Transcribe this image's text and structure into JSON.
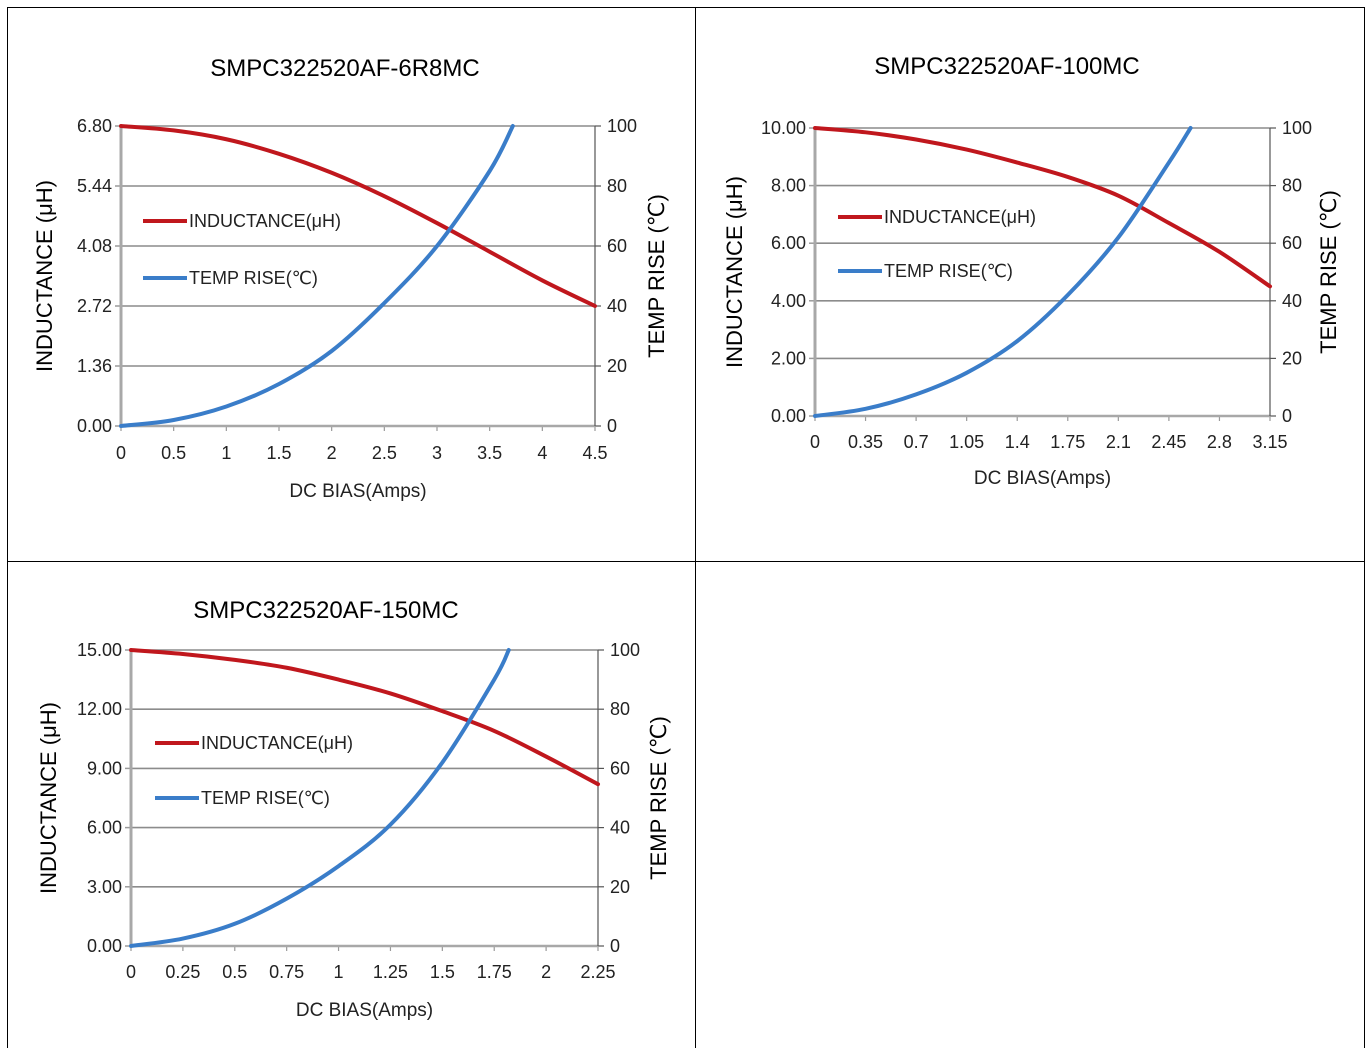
{
  "chart_data": [
    {
      "type": "line",
      "title": "SMPC322520AF-6R8MC",
      "xlabel": "DC BIAS(Amps)",
      "ylabel": "INDUCTANCE (μH)",
      "y2label": "TEMP RISE (℃)",
      "xlim": [
        0,
        4.5
      ],
      "ylim": [
        0,
        6.8
      ],
      "y2lim": [
        0,
        100
      ],
      "x_ticks": [
        "0",
        "0.5",
        "1",
        "1.5",
        "2",
        "2.5",
        "3",
        "3.5",
        "4",
        "4.5"
      ],
      "y_ticks": [
        "0.00",
        "1.36",
        "2.72",
        "4.08",
        "5.44",
        "6.80"
      ],
      "y2_ticks": [
        "0",
        "20",
        "40",
        "60",
        "80",
        "100"
      ],
      "grid": true,
      "legend_position": "left-center",
      "series": [
        {
          "name": "INDUCTANCE(μH)",
          "axis": "left",
          "color": "#c0171d",
          "x": [
            0,
            0.5,
            1,
            1.5,
            2,
            2.5,
            3,
            3.5,
            4,
            4.5
          ],
          "values": [
            6.8,
            6.7,
            6.5,
            6.17,
            5.74,
            5.21,
            4.6,
            3.95,
            3.3,
            2.72
          ]
        },
        {
          "name": "TEMP RISE(℃)",
          "axis": "right",
          "color": "#3a7dc9",
          "x": [
            0,
            0.5,
            1,
            1.5,
            2,
            2.5,
            3,
            3.5,
            3.72
          ],
          "values": [
            0,
            2,
            6.5,
            14,
            25,
            41,
            60,
            85,
            100
          ]
        }
      ]
    },
    {
      "type": "line",
      "title": "SMPC322520AF-100MC",
      "xlabel": "DC BIAS(Amps)",
      "ylabel": "INDUCTANCE (μH)",
      "y2label": "TEMP RISE (℃)",
      "xlim": [
        0,
        3.15
      ],
      "ylim": [
        0,
        10
      ],
      "y2lim": [
        0,
        100
      ],
      "x_ticks": [
        "0",
        "0.35",
        "0.7",
        "1.05",
        "1.4",
        "1.75",
        "2.1",
        "2.45",
        "2.8",
        "3.15"
      ],
      "y_ticks": [
        "0.00",
        "2.00",
        "4.00",
        "6.00",
        "8.00",
        "10.00"
      ],
      "y2_ticks": [
        "0",
        "20",
        "40",
        "60",
        "80",
        "100"
      ],
      "grid": true,
      "legend_position": "left-center",
      "series": [
        {
          "name": "INDUCTANCE(μH)",
          "axis": "left",
          "color": "#c0171d",
          "x": [
            0,
            0.35,
            0.7,
            1.05,
            1.4,
            1.75,
            2.1,
            2.45,
            2.8,
            3.15
          ],
          "values": [
            10,
            9.85,
            9.6,
            9.25,
            8.8,
            8.3,
            7.65,
            6.7,
            5.7,
            4.5
          ]
        },
        {
          "name": "TEMP RISE(℃)",
          "axis": "right",
          "color": "#3a7dc9",
          "x": [
            0,
            0.35,
            0.7,
            1.05,
            1.4,
            1.75,
            2.1,
            2.45,
            2.6
          ],
          "values": [
            0,
            2.5,
            7.5,
            15,
            26,
            42,
            62,
            88,
            100
          ]
        }
      ]
    },
    {
      "type": "line",
      "title": "SMPC322520AF-150MC",
      "xlabel": "DC BIAS(Amps)",
      "ylabel": "INDUCTANCE (μH)",
      "y2label": "TEMP RISE (℃)",
      "xlim": [
        0,
        2.25
      ],
      "ylim": [
        0,
        15
      ],
      "y2lim": [
        0,
        100
      ],
      "x_ticks": [
        "0",
        "0.25",
        "0.5",
        "0.75",
        "1",
        "1.25",
        "1.5",
        "1.75",
        "2",
        "2.25"
      ],
      "y_ticks": [
        "0.00",
        "3.00",
        "6.00",
        "9.00",
        "12.00",
        "15.00"
      ],
      "y2_ticks": [
        "0",
        "20",
        "40",
        "60",
        "80",
        "100"
      ],
      "grid": true,
      "legend_position": "left-center",
      "series": [
        {
          "name": "INDUCTANCE(μH)",
          "axis": "left",
          "color": "#c0171d",
          "x": [
            0,
            0.25,
            0.5,
            0.75,
            1,
            1.25,
            1.5,
            1.75,
            2,
            2.25
          ],
          "values": [
            15,
            14.8,
            14.5,
            14.1,
            13.5,
            12.8,
            11.9,
            10.9,
            9.6,
            8.2
          ]
        },
        {
          "name": "TEMP RISE(℃)",
          "axis": "right",
          "color": "#3a7dc9",
          "x": [
            0,
            0.25,
            0.5,
            0.75,
            1,
            1.25,
            1.5,
            1.75,
            1.82
          ],
          "values": [
            0,
            2.5,
            7.5,
            16,
            27,
            41,
            62,
            90,
            100
          ]
        }
      ]
    }
  ]
}
